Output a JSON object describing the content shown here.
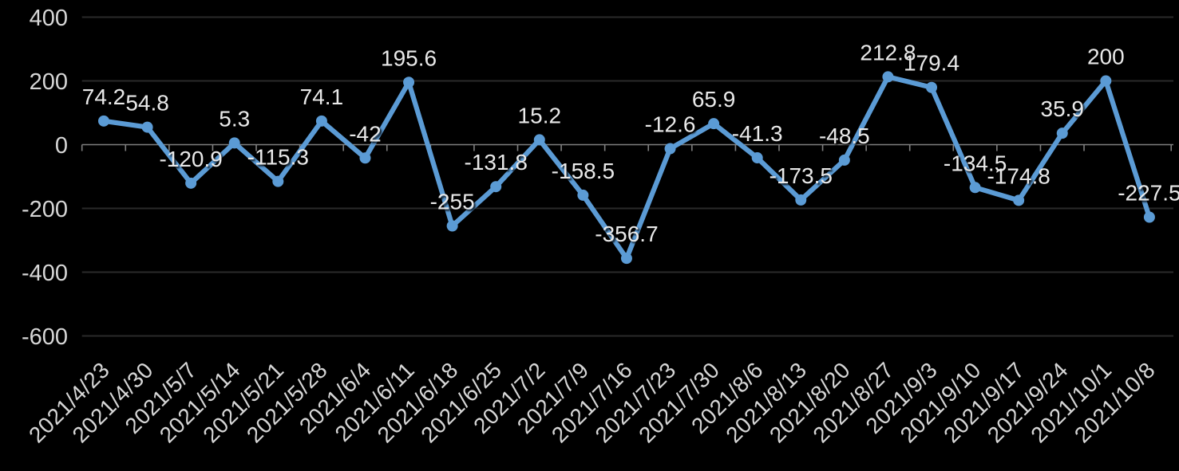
{
  "chart_data": {
    "type": "line",
    "title": "",
    "categories": [
      "2021/4/23",
      "2021/4/30",
      "2021/5/7",
      "2021/5/14",
      "2021/5/21",
      "2021/5/28",
      "2021/6/4",
      "2021/6/11",
      "2021/6/18",
      "2021/6/25",
      "2021/7/2",
      "2021/7/9",
      "2021/7/16",
      "2021/7/23",
      "2021/7/30",
      "2021/8/6",
      "2021/8/13",
      "2021/8/20",
      "2021/8/27",
      "2021/9/3",
      "2021/9/10",
      "2021/9/17",
      "2021/9/24",
      "2021/10/1",
      "2021/10/8"
    ],
    "values": [
      74.2,
      54.8,
      -120.9,
      5.3,
      -115.3,
      74.1,
      -42,
      195.6,
      -255,
      -131.8,
      15.2,
      -158.5,
      -356.7,
      -12.6,
      65.9,
      -41.3,
      -173.5,
      -48.5,
      212.8,
      179.4,
      -134.5,
      -174.8,
      35.9,
      200,
      -227.5
    ],
    "data_labels": [
      "74.2",
      "54.8",
      "-120.9",
      "5.3",
      "-115.3",
      "74.1",
      "-42",
      "195.6",
      "-255",
      "-131.8",
      "15.2",
      "-158.5",
      "-356.7",
      "-12.6",
      "65.9",
      "-41.3",
      "-173.5",
      "-48.5",
      "212.8",
      "179.4",
      "-134.5",
      "-174.8",
      "35.9",
      "200",
      "-227.5"
    ],
    "xlabel": "",
    "ylabel": "",
    "yticks": [
      400,
      200,
      0,
      -200,
      -400,
      -600
    ],
    "ylim": [
      -600,
      400
    ],
    "grid": true,
    "legend": "none",
    "x_label_rotation_deg": -45,
    "marker": "circle",
    "show_point_labels": true
  },
  "colors": {
    "background": "#000000",
    "series_line": "#5B9BD5",
    "marker_fill": "#5B9BD5",
    "gridline": "#2A2A2A",
    "zero_axis_line": "#7F7F7F",
    "tick_mark": "#7F7F7F",
    "axis_label_text": "#D6D6D6",
    "data_label_text": "#E9E9E9"
  }
}
